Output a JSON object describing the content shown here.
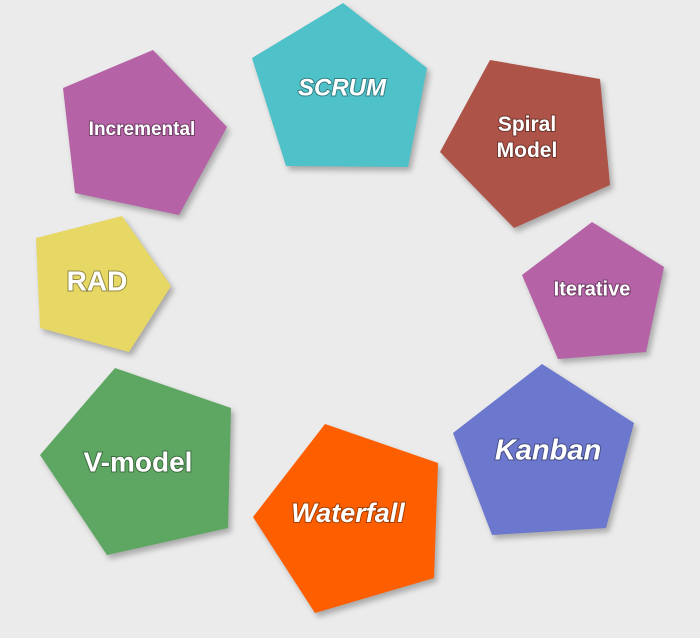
{
  "diagram": {
    "nodes": [
      {
        "id": "scrum",
        "label": "SCRUM",
        "color": "#4fc1c8"
      },
      {
        "id": "spiral",
        "label": "Spiral\nModel",
        "color": "#ad5348"
      },
      {
        "id": "iterative",
        "label": "Iterative",
        "color": "#b563a6"
      },
      {
        "id": "kanban",
        "label": "Kanban",
        "color": "#6b78cd"
      },
      {
        "id": "waterfall",
        "label": "Waterfall",
        "color": "#fd5f00"
      },
      {
        "id": "vmodel",
        "label": "V-model",
        "color": "#5ea763"
      },
      {
        "id": "rad",
        "label": "RAD",
        "color": "#e7d866"
      },
      {
        "id": "incremental",
        "label": "Incremental",
        "color": "#b563a6"
      }
    ]
  }
}
